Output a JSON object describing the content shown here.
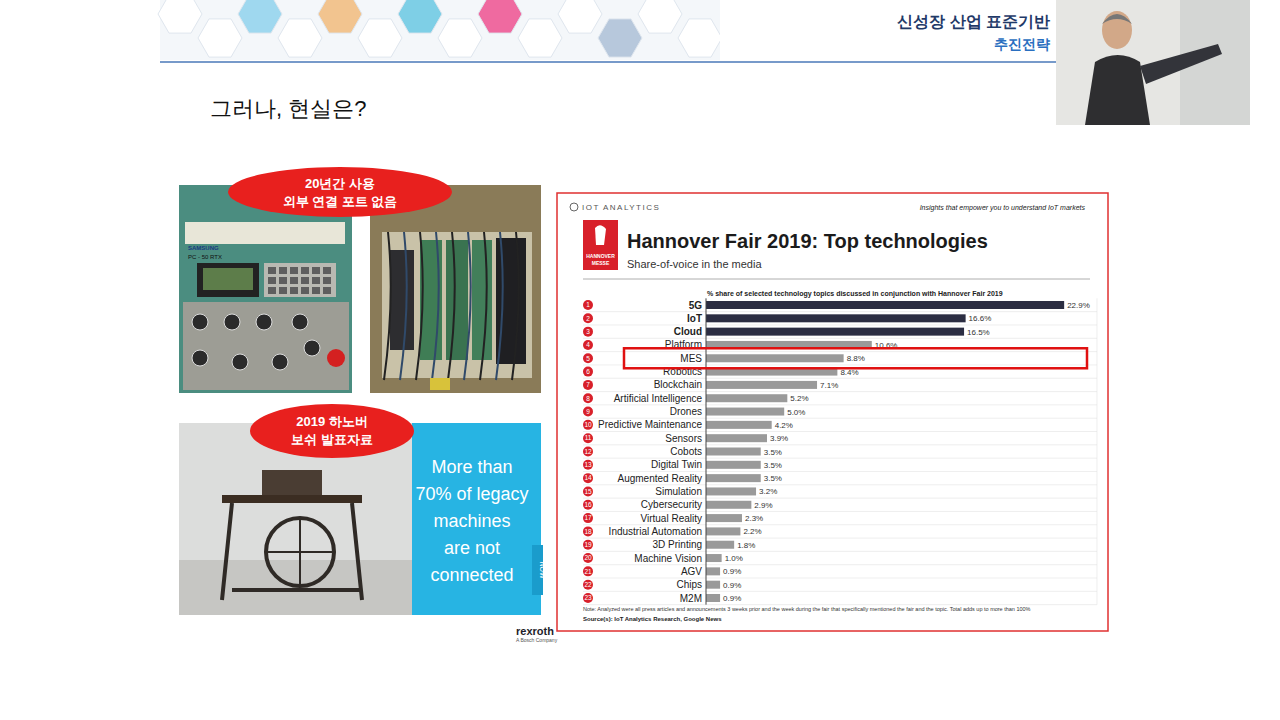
{
  "slide": {
    "header": {
      "title_line1": "신성장 산업 표준기반",
      "title_line2": "추진전략"
    },
    "title": "그러나, 현실은?",
    "callout_top": [
      "20년간 사용",
      "외부 연결 포트 없음"
    ],
    "callout_bottom": [
      "2019 하노버",
      "보쉬 발표자료"
    ],
    "photo_labels": [
      "SAMSUNG",
      "PC - 50 RTX"
    ],
    "photo_caption": [
      "More than",
      "70% of legacy",
      "machines",
      "are not",
      "connected"
    ],
    "photo_tag": "NOW",
    "photo_brand": [
      "rexroth",
      "A Bosch Company"
    ],
    "chart_panel": {
      "brand": "IOT ANALYTICS",
      "tagline": "Insights that empower you to understand IoT markets",
      "logo": [
        "HANNOVER",
        "MESSE"
      ],
      "ranks": [
        1,
        2,
        3,
        4,
        5,
        6,
        7,
        8,
        9,
        10,
        11,
        12,
        13,
        14,
        15,
        16,
        17,
        18,
        19,
        20,
        21,
        22,
        23
      ],
      "note": "Note: Analyzed were all press articles and announcements 3 weeks prior and the week during the fair that specifically mentioned the fair and the topic. Total adds up to more than 100%",
      "source": "Source(s): IoT Analytics Research, Google News"
    }
  },
  "chart_data": {
    "type": "bar",
    "orientation": "horizontal",
    "title": "Hannover Fair 2019: Top technologies",
    "subtitle": "Share-of-voice in the media",
    "axis_label": "% share of selected technology topics discussed in conjunction with Hannover Fair 2019",
    "categories": [
      "5G",
      "IoT",
      "Cloud",
      "Platform",
      "MES",
      "Robotics",
      "Blockchain",
      "Artificial Intelligence",
      "Drones",
      "Predictive Maintenance",
      "Sensors",
      "Cobots",
      "Digital Twin",
      "Augmented Reality",
      "Simulation",
      "Cybersecurity",
      "Virtual Reality",
      "Industrial Automation",
      "3D Printing",
      "Machine Vision",
      "AGV",
      "Chips",
      "M2M"
    ],
    "values": [
      22.9,
      16.6,
      16.5,
      10.6,
      8.8,
      8.4,
      7.1,
      5.2,
      5.0,
      4.2,
      3.9,
      3.5,
      3.5,
      3.5,
      3.2,
      2.9,
      2.3,
      2.2,
      1.8,
      1.0,
      0.9,
      0.9,
      0.9
    ],
    "value_labels": [
      "22.9%",
      "16.6%",
      "16.5%",
      "10.6%",
      "8.8%",
      "8.4%",
      "7.1%",
      "5.2%",
      "5.0%",
      "4.2%",
      "3.9%",
      "3.5%",
      "3.5%",
      "3.5%",
      "3.2%",
      "2.9%",
      "2.3%",
      "2.2%",
      "1.8%",
      "1.0%",
      "0.9%",
      "0.9%",
      "0.9%"
    ],
    "colors": [
      "#2b2d42",
      "#2b2d42",
      "#2b2d42",
      "#9a9a9a",
      "#9a9a9a",
      "#9a9a9a",
      "#9a9a9a",
      "#9a9a9a",
      "#9a9a9a",
      "#9a9a9a",
      "#9a9a9a",
      "#9a9a9a",
      "#9a9a9a",
      "#9a9a9a",
      "#9a9a9a",
      "#9a9a9a",
      "#9a9a9a",
      "#9a9a9a",
      "#9a9a9a",
      "#9a9a9a",
      "#9a9a9a",
      "#9a9a9a",
      "#9a9a9a"
    ],
    "xlim": [
      0,
      25
    ],
    "tick_labels": false,
    "data_labels": true,
    "grid": false
  }
}
